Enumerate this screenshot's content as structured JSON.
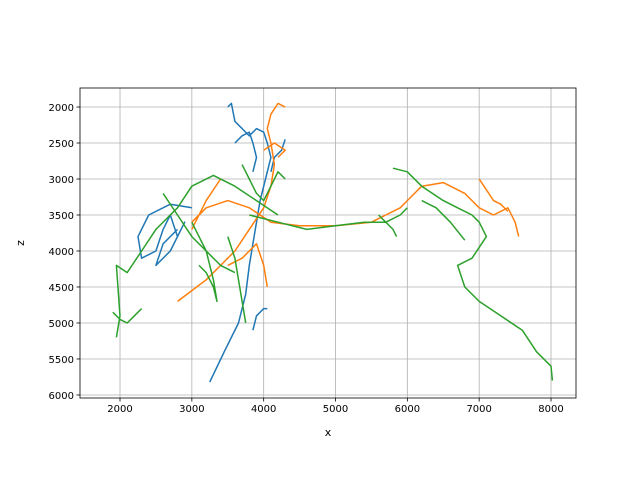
{
  "chart_data": {
    "type": "line",
    "x_label": "x",
    "y_label": "z",
    "grid": true,
    "y_inverted": true,
    "xlim": [
      1443,
      8348
    ],
    "ylim": [
      6042,
      1736
    ],
    "xticks": [
      2000,
      3000,
      4000,
      5000,
      6000,
      7000,
      8000
    ],
    "yticks": [
      2000,
      2500,
      3000,
      3500,
      4000,
      4500,
      5000,
      5500,
      6000
    ],
    "series": [
      {
        "color": "#1f77b4",
        "x": [
          3250,
          3450,
          3650,
          3750,
          3800,
          3850,
          3900,
          3950,
          4000,
          4050,
          4100,
          4050,
          4000,
          3900,
          3800,
          3700,
          3600,
          3550,
          3500,
          null,
          3000,
          2700,
          2400,
          2250,
          2300,
          2500,
          2600,
          2700,
          2800,
          2900,
          2700,
          2500,
          2600,
          2800,
          null,
          3600,
          3700,
          3800,
          3850,
          3900,
          3850,
          null,
          4100,
          4150,
          4250,
          4300,
          null,
          3850,
          3900,
          4000,
          4050
        ],
        "values": [
          5820,
          5400,
          5000,
          4600,
          4200,
          3900,
          3600,
          3300,
          3100,
          2900,
          2700,
          2500,
          2350,
          2300,
          2400,
          2300,
          2200,
          1950,
          2000,
          null,
          3400,
          3350,
          3500,
          3800,
          4100,
          4000,
          3700,
          3500,
          3800,
          3600,
          4000,
          4200,
          3900,
          3700,
          null,
          2500,
          2400,
          2350,
          2500,
          2700,
          2900,
          null,
          2900,
          2700,
          2600,
          2450,
          null,
          5100,
          4900,
          4800,
          4800
        ]
      },
      {
        "color": "#ff7f0e",
        "x": [
          2800,
          3000,
          3200,
          3400,
          3600,
          3800,
          4000,
          4100,
          4150,
          4100,
          4050,
          4100,
          4200,
          4300,
          null,
          3000,
          3200,
          3500,
          3800,
          4100,
          4500,
          5000,
          5500,
          5700,
          5900,
          6000,
          null,
          6000,
          6200,
          6500,
          6800,
          7000,
          7200,
          7400,
          7500,
          7550,
          null,
          7000,
          7100,
          7200,
          7300,
          7400,
          null,
          3000,
          3200,
          3400,
          null,
          3500,
          3700,
          3900,
          4000,
          4050,
          null,
          4000,
          4150,
          4300,
          4200
        ],
        "values": [
          4700,
          4550,
          4400,
          4200,
          4000,
          3700,
          3400,
          3100,
          2800,
          2500,
          2300,
          2100,
          1950,
          2000,
          null,
          3600,
          3400,
          3300,
          3400,
          3600,
          3650,
          3650,
          3600,
          3500,
          3400,
          3300,
          null,
          3300,
          3100,
          3050,
          3200,
          3400,
          3500,
          3400,
          3600,
          3800,
          null,
          3000,
          3150,
          3300,
          3350,
          3450,
          null,
          3700,
          3300,
          3000,
          null,
          4200,
          4100,
          3900,
          4200,
          4500,
          null,
          2600,
          2500,
          2600,
          2700
        ]
      },
      {
        "color": "#2ca02c",
        "x": [
          1900,
          2000,
          2100,
          2200,
          2300,
          null,
          1950,
          2000,
          1950,
          2100,
          2300,
          2500,
          2800,
          3000,
          3300,
          3600,
          3900,
          4200,
          null,
          3800,
          4200,
          4600,
          5000,
          5400,
          5700,
          5900,
          6000,
          null,
          5800,
          6000,
          6200,
          6500,
          6700,
          6900,
          7000,
          7100,
          6900,
          6700,
          6800,
          7000,
          7300,
          7600,
          7800,
          8000,
          8020,
          null,
          6200,
          6400,
          6600,
          6800,
          null,
          5600,
          5700,
          5800,
          5850,
          null,
          3100,
          3200,
          3300,
          3350,
          3300,
          3200,
          3100,
          3000,
          null,
          3500,
          3600,
          3650,
          3700,
          3750,
          null,
          3700,
          3800,
          3900,
          4000,
          4100,
          4200,
          4300,
          null,
          2600,
          2800,
          3000,
          3200,
          3400,
          3600
        ],
        "values": [
          4850,
          4950,
          5000,
          4900,
          4800,
          null,
          5200,
          4900,
          4200,
          4300,
          4000,
          3700,
          3400,
          3100,
          2950,
          3100,
          3300,
          3500,
          null,
          3500,
          3600,
          3700,
          3650,
          3600,
          3600,
          3500,
          3400,
          null,
          2850,
          2900,
          3100,
          3300,
          3400,
          3500,
          3600,
          3800,
          4100,
          4200,
          4500,
          4700,
          4900,
          5100,
          5400,
          5600,
          5800,
          null,
          3300,
          3400,
          3600,
          3850,
          null,
          3500,
          3600,
          3700,
          3800,
          null,
          4200,
          4300,
          4500,
          4700,
          4400,
          4000,
          3800,
          3600,
          null,
          3800,
          4100,
          4400,
          4700,
          5000,
          null,
          2800,
          3000,
          3200,
          3300,
          3100,
          2900,
          3000,
          null,
          3200,
          3500,
          3800,
          4000,
          4200,
          4300
        ]
      }
    ]
  }
}
